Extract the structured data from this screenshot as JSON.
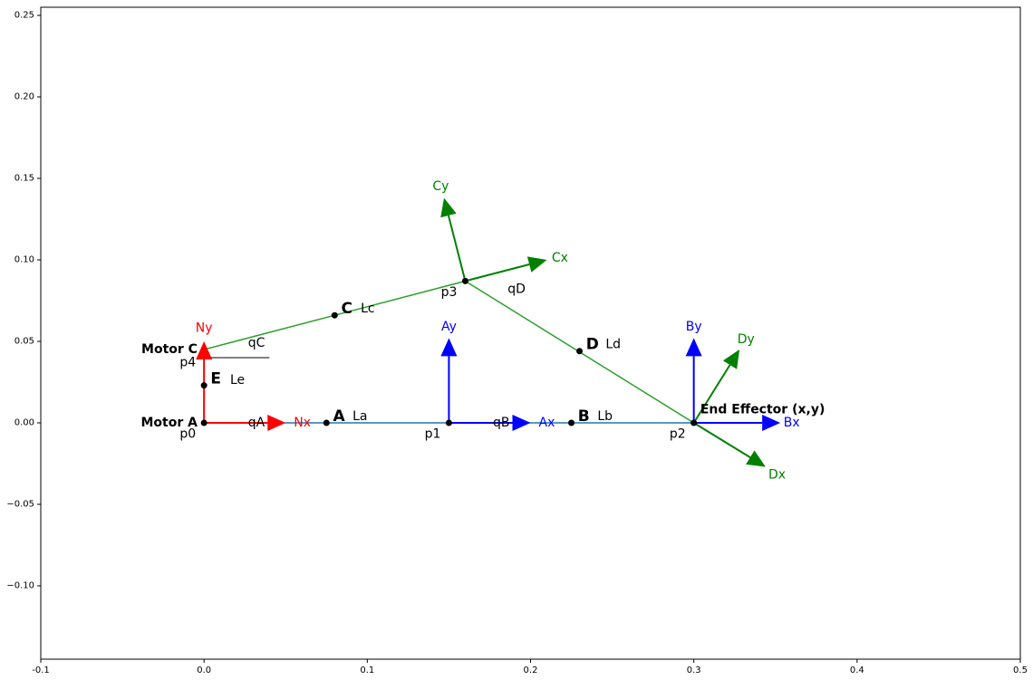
{
  "chart_data": {
    "type": "scatter",
    "xlim": [
      -0.1,
      0.5
    ],
    "ylim": [
      -0.145,
      0.255
    ],
    "x_ticks": [
      "-0.1",
      "0.0",
      "0.1",
      "0.2",
      "0.3",
      "0.4",
      "0.5"
    ],
    "y_ticks": [
      "−0.10",
      "−0.05",
      "0.00",
      "0.05",
      "0.10",
      "0.15",
      "0.20",
      "0.25"
    ],
    "grid": false,
    "colors": {
      "red": "#ff0000",
      "blue": "#0000ff",
      "green": "#008000",
      "link_blue": "#1f77b4",
      "link_green": "#2ca02c",
      "black": "#000000"
    },
    "links": [
      {
        "name": "link-AB",
        "from": [
          0.0,
          0.0
        ],
        "to": [
          0.3,
          0.0
        ],
        "color": "link_blue"
      },
      {
        "name": "link-C",
        "from": [
          0.0,
          0.045
        ],
        "to": [
          0.16,
          0.087
        ],
        "color": "link_green"
      },
      {
        "name": "link-D",
        "from": [
          0.16,
          0.087
        ],
        "to": [
          0.3,
          0.0
        ],
        "color": "link_green"
      },
      {
        "name": "link-E",
        "from": [
          0.0,
          0.0
        ],
        "to": [
          0.0,
          0.045
        ],
        "color": "black"
      },
      {
        "name": "angle-ref-qC",
        "from": [
          0.0,
          0.04
        ],
        "to": [
          0.04,
          0.04
        ],
        "color": "black"
      }
    ],
    "points": [
      {
        "name": "p0",
        "x": 0.0,
        "y": 0.0
      },
      {
        "name": "A",
        "x": 0.075,
        "y": 0.0
      },
      {
        "name": "p1",
        "x": 0.15,
        "y": 0.0
      },
      {
        "name": "B",
        "x": 0.225,
        "y": 0.0
      },
      {
        "name": "p2",
        "x": 0.3,
        "y": 0.0
      },
      {
        "name": "E",
        "x": 0.0,
        "y": 0.023
      },
      {
        "name": "C",
        "x": 0.08,
        "y": 0.066
      },
      {
        "name": "p3",
        "x": 0.16,
        "y": 0.087
      },
      {
        "name": "D",
        "x": 0.23,
        "y": 0.044
      }
    ],
    "arrows": [
      {
        "name": "Nx",
        "from": [
          0.0,
          0.0
        ],
        "to": [
          0.05,
          0.0
        ],
        "color": "red"
      },
      {
        "name": "Ny",
        "from": [
          0.0,
          0.0
        ],
        "to": [
          0.0,
          0.05
        ],
        "color": "red"
      },
      {
        "name": "Ax",
        "from": [
          0.15,
          0.0
        ],
        "to": [
          0.2,
          0.0
        ],
        "color": "blue"
      },
      {
        "name": "Ay",
        "from": [
          0.15,
          0.0
        ],
        "to": [
          0.15,
          0.052
        ],
        "color": "blue"
      },
      {
        "name": "Bx",
        "from": [
          0.3,
          0.0
        ],
        "to": [
          0.353,
          0.0
        ],
        "color": "blue"
      },
      {
        "name": "By",
        "from": [
          0.3,
          0.0
        ],
        "to": [
          0.3,
          0.052
        ],
        "color": "blue"
      },
      {
        "name": "Cx",
        "from": [
          0.16,
          0.087
        ],
        "to": [
          0.21,
          0.1
        ],
        "color": "green"
      },
      {
        "name": "Cy",
        "from": [
          0.16,
          0.087
        ],
        "to": [
          0.147,
          0.138
        ],
        "color": "green"
      },
      {
        "name": "Dx",
        "from": [
          0.3,
          0.0
        ],
        "to": [
          0.344,
          -0.027
        ],
        "color": "green"
      },
      {
        "name": "Dy",
        "from": [
          0.3,
          0.0
        ],
        "to": [
          0.328,
          0.045
        ],
        "color": "green"
      }
    ],
    "labels": [
      {
        "name": "label-Nx",
        "text": "Nx",
        "x": 0.055,
        "y": 0.0,
        "color": "red",
        "size": 14,
        "weight": "normal",
        "anchor": "start"
      },
      {
        "name": "label-Ny",
        "text": "Ny",
        "x": 0.0,
        "y": 0.058,
        "color": "red",
        "size": 14,
        "weight": "normal",
        "anchor": "middle"
      },
      {
        "name": "label-Ax",
        "text": "Ax",
        "x": 0.205,
        "y": 0.0,
        "color": "blue",
        "size": 14,
        "weight": "normal",
        "anchor": "start"
      },
      {
        "name": "label-Ay",
        "text": "Ay",
        "x": 0.15,
        "y": 0.059,
        "color": "blue",
        "size": 14,
        "weight": "normal",
        "anchor": "middle"
      },
      {
        "name": "label-Bx",
        "text": "Bx",
        "x": 0.355,
        "y": 0.0,
        "color": "blue",
        "size": 14,
        "weight": "normal",
        "anchor": "start"
      },
      {
        "name": "label-By",
        "text": "By",
        "x": 0.3,
        "y": 0.059,
        "color": "blue",
        "size": 14,
        "weight": "normal",
        "anchor": "middle"
      },
      {
        "name": "label-Cx",
        "text": "Cx",
        "x": 0.213,
        "y": 0.101,
        "color": "green",
        "size": 14,
        "weight": "normal",
        "anchor": "start"
      },
      {
        "name": "label-Cy",
        "text": "Cy",
        "x": 0.145,
        "y": 0.145,
        "color": "green",
        "size": 14,
        "weight": "normal",
        "anchor": "middle"
      },
      {
        "name": "label-Dx",
        "text": "Dx",
        "x": 0.351,
        "y": -0.032,
        "color": "green",
        "size": 14,
        "weight": "normal",
        "anchor": "middle"
      },
      {
        "name": "label-Dy",
        "text": "Dy",
        "x": 0.332,
        "y": 0.051,
        "color": "green",
        "size": 14,
        "weight": "normal",
        "anchor": "middle"
      },
      {
        "name": "label-motor-a",
        "text": "Motor A",
        "x": -0.004,
        "y": 0.0,
        "color": "black",
        "size": 14,
        "weight": "bold",
        "anchor": "end"
      },
      {
        "name": "label-motor-c",
        "text": "Motor C",
        "x": -0.004,
        "y": 0.045,
        "color": "black",
        "size": 14,
        "weight": "bold",
        "anchor": "end"
      },
      {
        "name": "label-end-effector",
        "text": "End Effector (x,y)",
        "x": 0.304,
        "y": 0.008,
        "color": "black",
        "size": 14,
        "weight": "bold",
        "anchor": "start"
      },
      {
        "name": "label-p0",
        "text": "p0",
        "x": -0.005,
        "y": -0.007,
        "color": "black",
        "size": 14,
        "weight": "normal",
        "anchor": "end"
      },
      {
        "name": "label-p1",
        "text": "p1",
        "x": 0.145,
        "y": -0.007,
        "color": "black",
        "size": 14,
        "weight": "normal",
        "anchor": "end"
      },
      {
        "name": "label-p2",
        "text": "p2",
        "x": 0.295,
        "y": -0.007,
        "color": "black",
        "size": 14,
        "weight": "normal",
        "anchor": "end"
      },
      {
        "name": "label-p3",
        "text": "p3",
        "x": 0.155,
        "y": 0.08,
        "color": "black",
        "size": 14,
        "weight": "normal",
        "anchor": "end"
      },
      {
        "name": "label-p4",
        "text": "p4",
        "x": -0.005,
        "y": 0.037,
        "color": "black",
        "size": 14,
        "weight": "normal",
        "anchor": "end"
      },
      {
        "name": "label-qA",
        "text": "qA",
        "x": 0.027,
        "y": 0.0,
        "color": "black",
        "size": 14,
        "weight": "normal",
        "anchor": "start"
      },
      {
        "name": "label-qB",
        "text": "qB",
        "x": 0.177,
        "y": 0.0,
        "color": "black",
        "size": 14,
        "weight": "normal",
        "anchor": "start"
      },
      {
        "name": "label-qC",
        "text": "qC",
        "x": 0.027,
        "y": 0.049,
        "color": "black",
        "size": 14,
        "weight": "normal",
        "anchor": "start"
      },
      {
        "name": "label-qD",
        "text": "qD",
        "x": 0.186,
        "y": 0.082,
        "color": "black",
        "size": 14,
        "weight": "normal",
        "anchor": "start"
      },
      {
        "name": "label-A",
        "text": "A",
        "x": 0.079,
        "y": 0.004,
        "color": "black",
        "size": 17,
        "weight": "bold",
        "anchor": "start"
      },
      {
        "name": "label-La",
        "text": "La",
        "x": 0.091,
        "y": 0.004,
        "color": "black",
        "size": 14,
        "weight": "normal",
        "anchor": "start"
      },
      {
        "name": "label-B",
        "text": "B",
        "x": 0.229,
        "y": 0.004,
        "color": "black",
        "size": 17,
        "weight": "bold",
        "anchor": "start"
      },
      {
        "name": "label-Lb",
        "text": "Lb",
        "x": 0.241,
        "y": 0.004,
        "color": "black",
        "size": 14,
        "weight": "normal",
        "anchor": "start"
      },
      {
        "name": "label-C",
        "text": "C",
        "x": 0.084,
        "y": 0.07,
        "color": "black",
        "size": 17,
        "weight": "bold",
        "anchor": "start"
      },
      {
        "name": "label-Lc",
        "text": "Lc",
        "x": 0.096,
        "y": 0.07,
        "color": "black",
        "size": 14,
        "weight": "normal",
        "anchor": "start"
      },
      {
        "name": "label-D",
        "text": "D",
        "x": 0.234,
        "y": 0.048,
        "color": "black",
        "size": 17,
        "weight": "bold",
        "anchor": "start"
      },
      {
        "name": "label-Ld",
        "text": "Ld",
        "x": 0.246,
        "y": 0.048,
        "color": "black",
        "size": 14,
        "weight": "normal",
        "anchor": "start"
      },
      {
        "name": "label-E",
        "text": "E",
        "x": 0.004,
        "y": 0.027,
        "color": "black",
        "size": 17,
        "weight": "bold",
        "anchor": "start"
      },
      {
        "name": "label-Le",
        "text": "Le",
        "x": 0.016,
        "y": 0.026,
        "color": "black",
        "size": 14,
        "weight": "normal",
        "anchor": "start"
      }
    ]
  }
}
